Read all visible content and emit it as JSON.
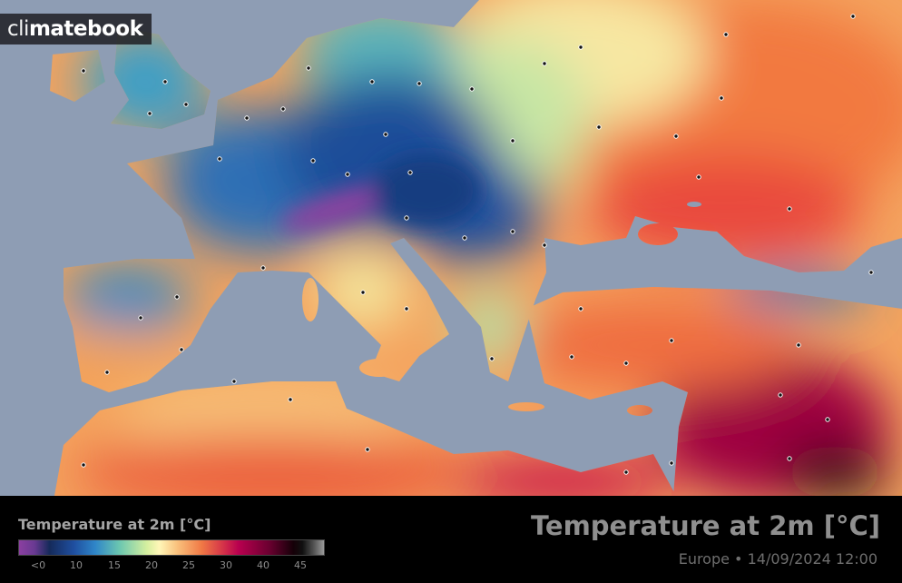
{
  "logo": {
    "text": "climatebook",
    "part_thin": "cli",
    "part_bold": "matebook"
  },
  "map": {
    "region": "Europe",
    "sea_color": "#8e9db4"
  },
  "legend": {
    "title": "Temperature at 2m [°C]",
    "ticks": [
      "<0",
      "10",
      "15",
      "20",
      "25",
      "30",
      "40",
      "45"
    ],
    "colors": [
      "#8b3fa0",
      "#152a5a",
      "#1f4fa0",
      "#6cc7b0",
      "#fff6b8",
      "#f07845",
      "#b8004f",
      "#150008",
      "#9a9a9a"
    ]
  },
  "header": {
    "title": "Temperature at 2m [°C]",
    "subtitle": "Europe • 14/09/2024 12:00"
  }
}
